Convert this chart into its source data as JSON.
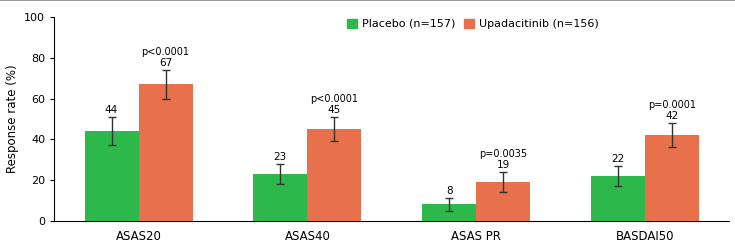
{
  "categories": [
    "ASAS20",
    "ASAS40",
    "ASAS PR",
    "BASDAI50"
  ],
  "placebo_values": [
    44,
    23,
    8,
    22
  ],
  "upa_values": [
    67,
    45,
    19,
    42
  ],
  "placebo_errors": [
    7,
    5,
    3,
    5
  ],
  "upa_errors": [
    7,
    6,
    5,
    6
  ],
  "p_values": [
    "p<0.0001",
    "p<0.0001",
    "p=0.0035",
    "p=0.0001"
  ],
  "placebo_color": "#2db84b",
  "upa_color": "#e8704a",
  "ylabel": "Response rate (%)",
  "ylim": [
    0,
    100
  ],
  "yticks": [
    0,
    20,
    40,
    60,
    80,
    100
  ],
  "legend_placebo": "Placebo (n=157)",
  "legend_upa": "Upadacitinib (n=156)",
  "bar_width": 0.32,
  "background_color": "#ffffff",
  "top_line_color": "#888888"
}
